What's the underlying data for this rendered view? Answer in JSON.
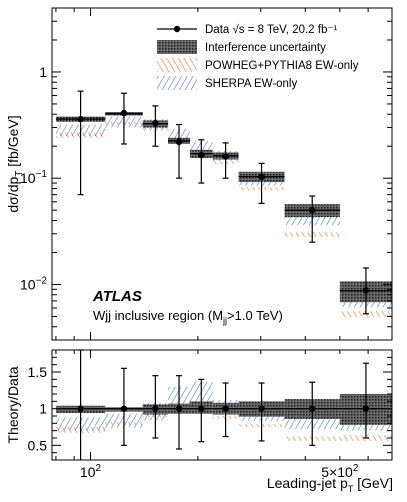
{
  "chart_data": [
    {
      "type": "scatter",
      "panel": "main",
      "ylabel": "dσ/dp_T [fb/GeV]",
      "yscale": "log",
      "ylim": [
        0.003,
        4
      ],
      "y_tick_labels": [
        "10^-2",
        "10^-1",
        "1"
      ],
      "x_bin_edges": [
        80,
        110,
        140,
        165,
        190,
        220,
        260,
        350,
        500,
        700
      ],
      "series": [
        {
          "name": "Data √s = 8 TeV, 20.2 fb⁻¹",
          "values": [
            0.36,
            0.41,
            0.33,
            0.22,
            0.165,
            0.16,
            0.103,
            0.05,
            0.0088
          ],
          "err_low": [
            0.29,
            0.2,
            0.13,
            0.12,
            0.075,
            0.06,
            0.045,
            0.025,
            0.0035
          ],
          "err_high": [
            0.3,
            0.22,
            0.15,
            0.1,
            0.065,
            0.055,
            0.035,
            0.018,
            0.0055
          ]
        },
        {
          "name": "Interference uncertainty",
          "low": [
            0.34,
            0.39,
            0.3,
            0.21,
            0.155,
            0.15,
            0.092,
            0.043,
            0.0068
          ],
          "high": [
            0.38,
            0.42,
            0.35,
            0.24,
            0.185,
            0.175,
            0.115,
            0.057,
            0.0107
          ]
        },
        {
          "name": "POWHEG+PYTHIA8 EW-only",
          "low": [
            0.24,
            0.32,
            0.29,
            0.21,
            0.165,
            0.135,
            0.077,
            0.028,
            0.0049
          ],
          "high": [
            0.27,
            0.34,
            0.31,
            0.23,
            0.18,
            0.145,
            0.082,
            0.031,
            0.0056
          ]
        },
        {
          "name": "SHERPA EW-only",
          "low": [
            0.25,
            0.3,
            0.28,
            0.21,
            0.175,
            0.145,
            0.085,
            0.036,
            0.0061
          ],
          "high": [
            0.32,
            0.38,
            0.36,
            0.29,
            0.225,
            0.18,
            0.1,
            0.044,
            0.0075
          ]
        }
      ],
      "legend_position": "top-right"
    },
    {
      "type": "scatter",
      "panel": "ratio",
      "ylabel": "Theory/Data",
      "xlabel": "Leading-jet p_T [GeV]",
      "xscale": "log",
      "ylim": [
        0.3,
        1.8
      ],
      "y_tick_labels": [
        "0.5",
        "1",
        "1.5"
      ],
      "x_tick_labels": [
        "10^2",
        "5×10^2"
      ],
      "x_bin_edges": [
        80,
        110,
        140,
        165,
        190,
        220,
        260,
        350,
        500,
        700
      ],
      "series": [
        {
          "name": "Data",
          "values": [
            1,
            1,
            1,
            1,
            1,
            1,
            1,
            1,
            1
          ],
          "err_low": [
            0.8,
            0.5,
            0.4,
            0.55,
            0.45,
            0.38,
            0.44,
            0.5,
            0.4
          ],
          "err_high": [
            0.8,
            0.55,
            0.45,
            0.45,
            0.4,
            0.35,
            0.35,
            0.36,
            0.62
          ]
        },
        {
          "name": "Interference uncertainty",
          "low": [
            0.94,
            0.96,
            0.92,
            0.93,
            0.93,
            0.92,
            0.89,
            0.86,
            0.78
          ],
          "high": [
            1.04,
            1.02,
            1.06,
            1.07,
            1.1,
            1.08,
            1.1,
            1.13,
            1.2
          ]
        },
        {
          "name": "POWHEG+PYTHIA8 EW-only",
          "low": [
            0.67,
            0.78,
            0.88,
            0.97,
            1.0,
            0.86,
            0.75,
            0.56,
            0.56
          ],
          "high": [
            0.75,
            0.82,
            0.94,
            1.03,
            1.08,
            0.9,
            0.79,
            0.62,
            0.64
          ]
        },
        {
          "name": "SHERPA EW-only",
          "low": [
            0.7,
            0.74,
            0.84,
            0.95,
            1.05,
            0.92,
            0.83,
            0.72,
            0.7
          ],
          "high": [
            0.88,
            0.93,
            1.08,
            1.3,
            1.37,
            1.12,
            0.97,
            0.88,
            0.86
          ]
        }
      ]
    }
  ],
  "labels": {
    "atlas": "ATLAS",
    "region_prefix": "Wjj inclusive region (M",
    "region_sub": "jj",
    "region_suffix": ">1.0 TeV)",
    "xlabel_main": "Leading-jet p",
    "xlabel_sub": "T",
    "xlabel_unit": " [GeV]"
  },
  "legend": [
    {
      "label": "Data √s = 8 TeV, 20.2 fb⁻¹",
      "style": "point"
    },
    {
      "label": "Interference uncertainty",
      "style": "dark-fill"
    },
    {
      "label": "POWHEG+PYTHIA8 EW-only",
      "style": "orange-hatch"
    },
    {
      "label": "SHERPA EW-only",
      "style": "blue-hatch"
    }
  ],
  "colors": {
    "data": "#000000",
    "interference": "#3a3a3a",
    "powheg": "#f07030",
    "sherpa": "#4a78d0"
  }
}
